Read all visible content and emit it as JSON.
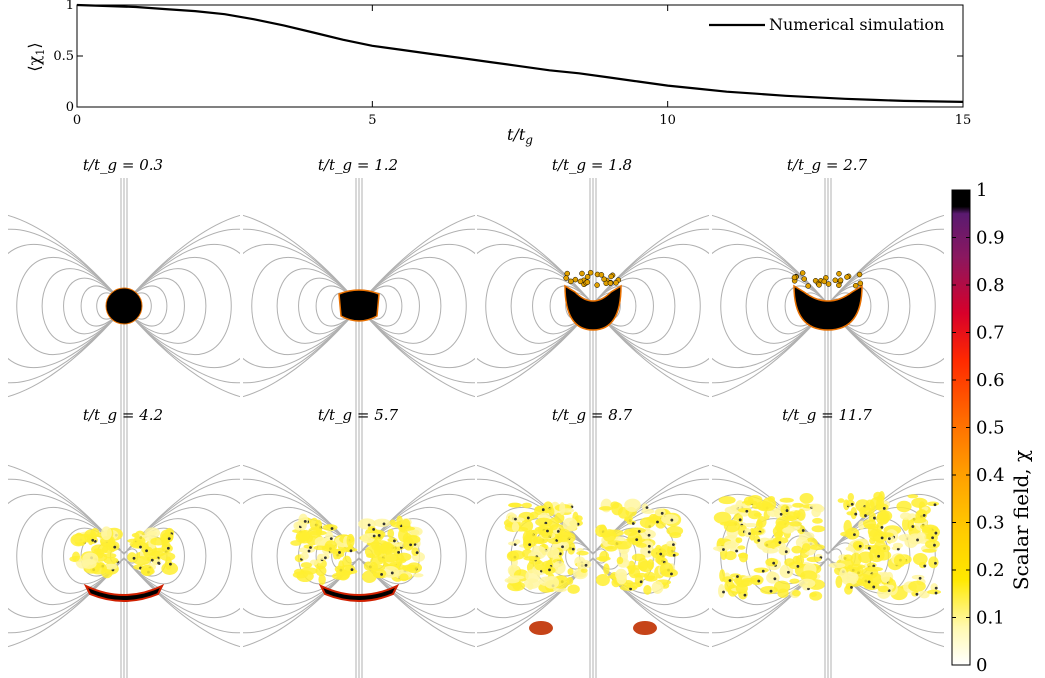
{
  "top_chart": {
    "type": "line",
    "xlabel": "t/t_g",
    "ylabel": "⟨χ₁⟩",
    "xlim": [
      0,
      15
    ],
    "ylim": [
      0,
      1
    ],
    "x_ticks": [
      "0",
      "5",
      "10",
      "15"
    ],
    "y_ticks": [
      "0",
      "0.5",
      "1"
    ],
    "legend": "Numerical simulation",
    "legend_position": "top-right",
    "grid": false
  },
  "chart_data": {
    "type": "line",
    "xlabel": "t/t_g",
    "ylabel": "⟨χ₁⟩",
    "xlim": [
      0,
      15
    ],
    "ylim": [
      0,
      1
    ],
    "series": [
      {
        "name": "Numerical simulation",
        "x": [
          0,
          0.5,
          1,
          1.5,
          2,
          2.5,
          3,
          3.5,
          4,
          4.5,
          5,
          5.5,
          6,
          6.5,
          7,
          7.5,
          8,
          8.5,
          9,
          9.5,
          10,
          10.5,
          11,
          11.5,
          12,
          12.5,
          13,
          13.5,
          14,
          14.5,
          15
        ],
        "values": [
          1.0,
          0.99,
          0.98,
          0.96,
          0.94,
          0.91,
          0.86,
          0.8,
          0.73,
          0.66,
          0.6,
          0.56,
          0.52,
          0.48,
          0.44,
          0.4,
          0.36,
          0.33,
          0.29,
          0.25,
          0.21,
          0.18,
          0.15,
          0.13,
          0.11,
          0.095,
          0.08,
          0.07,
          0.06,
          0.055,
          0.05
        ]
      }
    ]
  },
  "panels": [
    {
      "title": "t/t_g = 0.3",
      "stage": 0
    },
    {
      "title": "t/t_g = 1.2",
      "stage": 1
    },
    {
      "title": "t/t_g = 1.8",
      "stage": 2
    },
    {
      "title": "t/t_g = 2.7",
      "stage": 3
    },
    {
      "title": "t/t_g = 4.2",
      "stage": 4
    },
    {
      "title": "t/t_g = 5.7",
      "stage": 5
    },
    {
      "title": "t/t_g = 8.7",
      "stage": 6
    },
    {
      "title": "t/t_g = 11.7",
      "stage": 7
    }
  ],
  "colorbar": {
    "label": "Scalar field, χ",
    "ticks": [
      "1",
      "0.9",
      "0.8",
      "0.7",
      "0.6",
      "0.5",
      "0.4",
      "0.3",
      "0.2",
      "0.1",
      "0"
    ],
    "colors": [
      "#ffffff",
      "#fff9b0",
      "#ffe800",
      "#ffcc00",
      "#ffa000",
      "#ff7000",
      "#ff3000",
      "#e00000",
      "#a00030",
      "#6a1070",
      "#000000"
    ]
  }
}
